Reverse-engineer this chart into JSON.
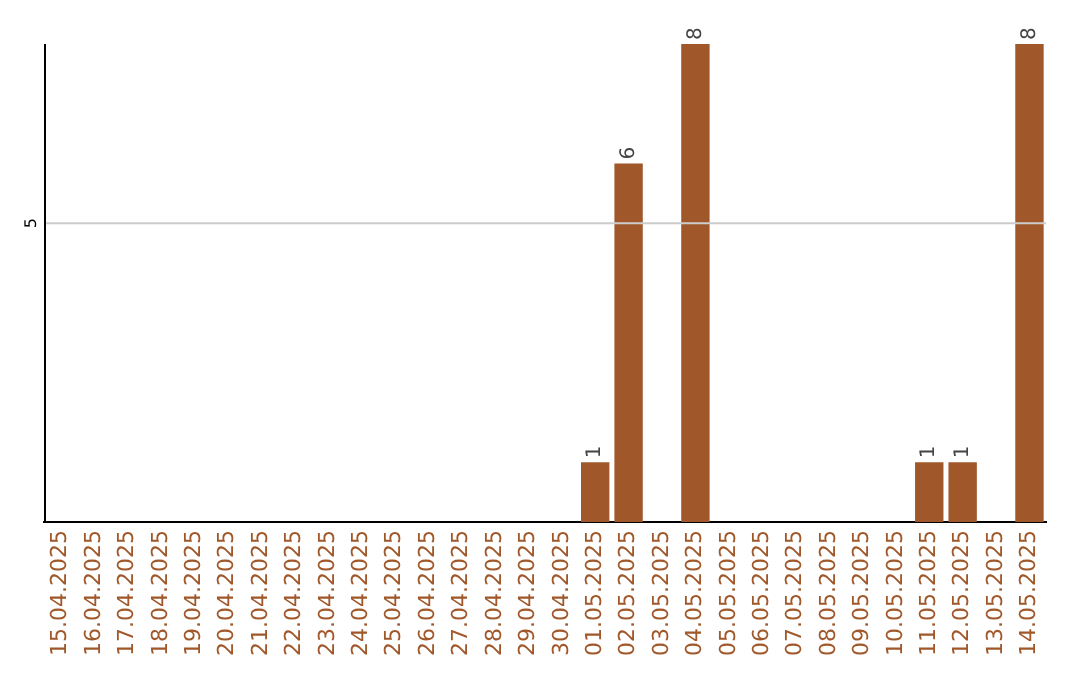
{
  "chart_data": {
    "type": "bar",
    "ylim": [
      0,
      8
    ],
    "data_labels": true,
    "categories": [
      "15.04.2025",
      "16.04.2025",
      "17.04.2025",
      "18.04.2025",
      "19.04.2025",
      "20.04.2025",
      "21.04.2025",
      "22.04.2025",
      "23.04.2025",
      "24.04.2025",
      "25.04.2025",
      "26.04.2025",
      "27.04.2025",
      "28.04.2025",
      "29.04.2025",
      "30.04.2025",
      "01.05.2025",
      "02.05.2025",
      "03.05.2025",
      "04.05.2025",
      "05.05.2025",
      "06.05.2025",
      "07.05.2025",
      "08.05.2025",
      "09.05.2025",
      "10.05.2025",
      "11.05.2025",
      "12.05.2025",
      "13.05.2025",
      "14.05.2025"
    ],
    "values": [
      null,
      null,
      null,
      null,
      null,
      null,
      null,
      null,
      null,
      null,
      null,
      null,
      null,
      null,
      null,
      null,
      1,
      6,
      null,
      8,
      null,
      null,
      null,
      null,
      null,
      null,
      1,
      1,
      null,
      8
    ],
    "color": "#a0582a",
    "legend": false,
    "ref_lines": [
      {
        "axis": "y",
        "value": 5,
        "label": "5",
        "color": "#cccccc"
      }
    ]
  }
}
